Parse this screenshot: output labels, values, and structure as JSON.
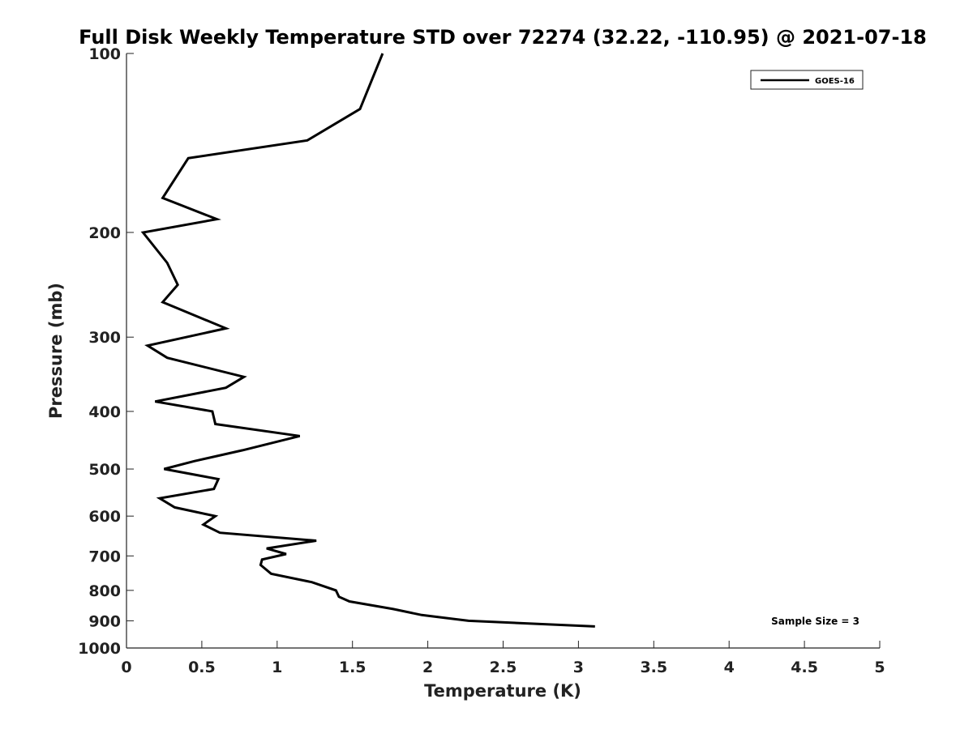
{
  "chart_data": {
    "type": "line",
    "title": "Full Disk Weekly Temperature STD over 72274 (32.22, -110.95) @ 2021-07-18",
    "xlabel": "Temperature (K)",
    "ylabel": "Pressure (mb)",
    "xlim": [
      0,
      5
    ],
    "ylim": [
      100,
      1000
    ],
    "y_scale": "log",
    "y_reversed": true,
    "x_ticks": [
      "0",
      "0.5",
      "1",
      "1.5",
      "2",
      "2.5",
      "3",
      "3.5",
      "4",
      "4.5",
      "5"
    ],
    "y_ticks": [
      "100",
      "200",
      "300",
      "400",
      "500",
      "600",
      "700",
      "800",
      "900",
      "1000"
    ],
    "grid": false,
    "legend": {
      "placement": "top-right",
      "entries": [
        "GOES-16"
      ]
    },
    "annotations": [
      {
        "text": "Sample Size = 3",
        "placement": "bottom-right"
      }
    ],
    "series": [
      {
        "name": "GOES-16",
        "color": "#000000",
        "x": [
          1.7,
          1.55,
          1.2,
          0.41,
          0.24,
          0.6,
          0.11,
          0.27,
          0.34,
          0.24,
          0.66,
          0.14,
          0.27,
          0.78,
          0.66,
          0.19,
          0.57,
          0.59,
          1.15,
          0.77,
          0.45,
          0.25,
          0.61,
          0.58,
          0.22,
          0.32,
          0.59,
          0.51,
          0.62,
          1.26,
          0.93,
          1.06,
          0.9,
          0.89,
          0.96,
          1.23,
          1.39,
          1.41,
          1.48,
          1.77,
          1.96,
          2.27,
          3.11
        ],
        "y": [
          100,
          124,
          140,
          150,
          175,
          190,
          200,
          225,
          245,
          262,
          290,
          310,
          325,
          350,
          365,
          385,
          400,
          420,
          440,
          465,
          485,
          500,
          520,
          540,
          560,
          580,
          600,
          620,
          640,
          660,
          680,
          695,
          710,
          725,
          750,
          775,
          800,
          820,
          835,
          860,
          880,
          900,
          920
        ]
      }
    ]
  }
}
